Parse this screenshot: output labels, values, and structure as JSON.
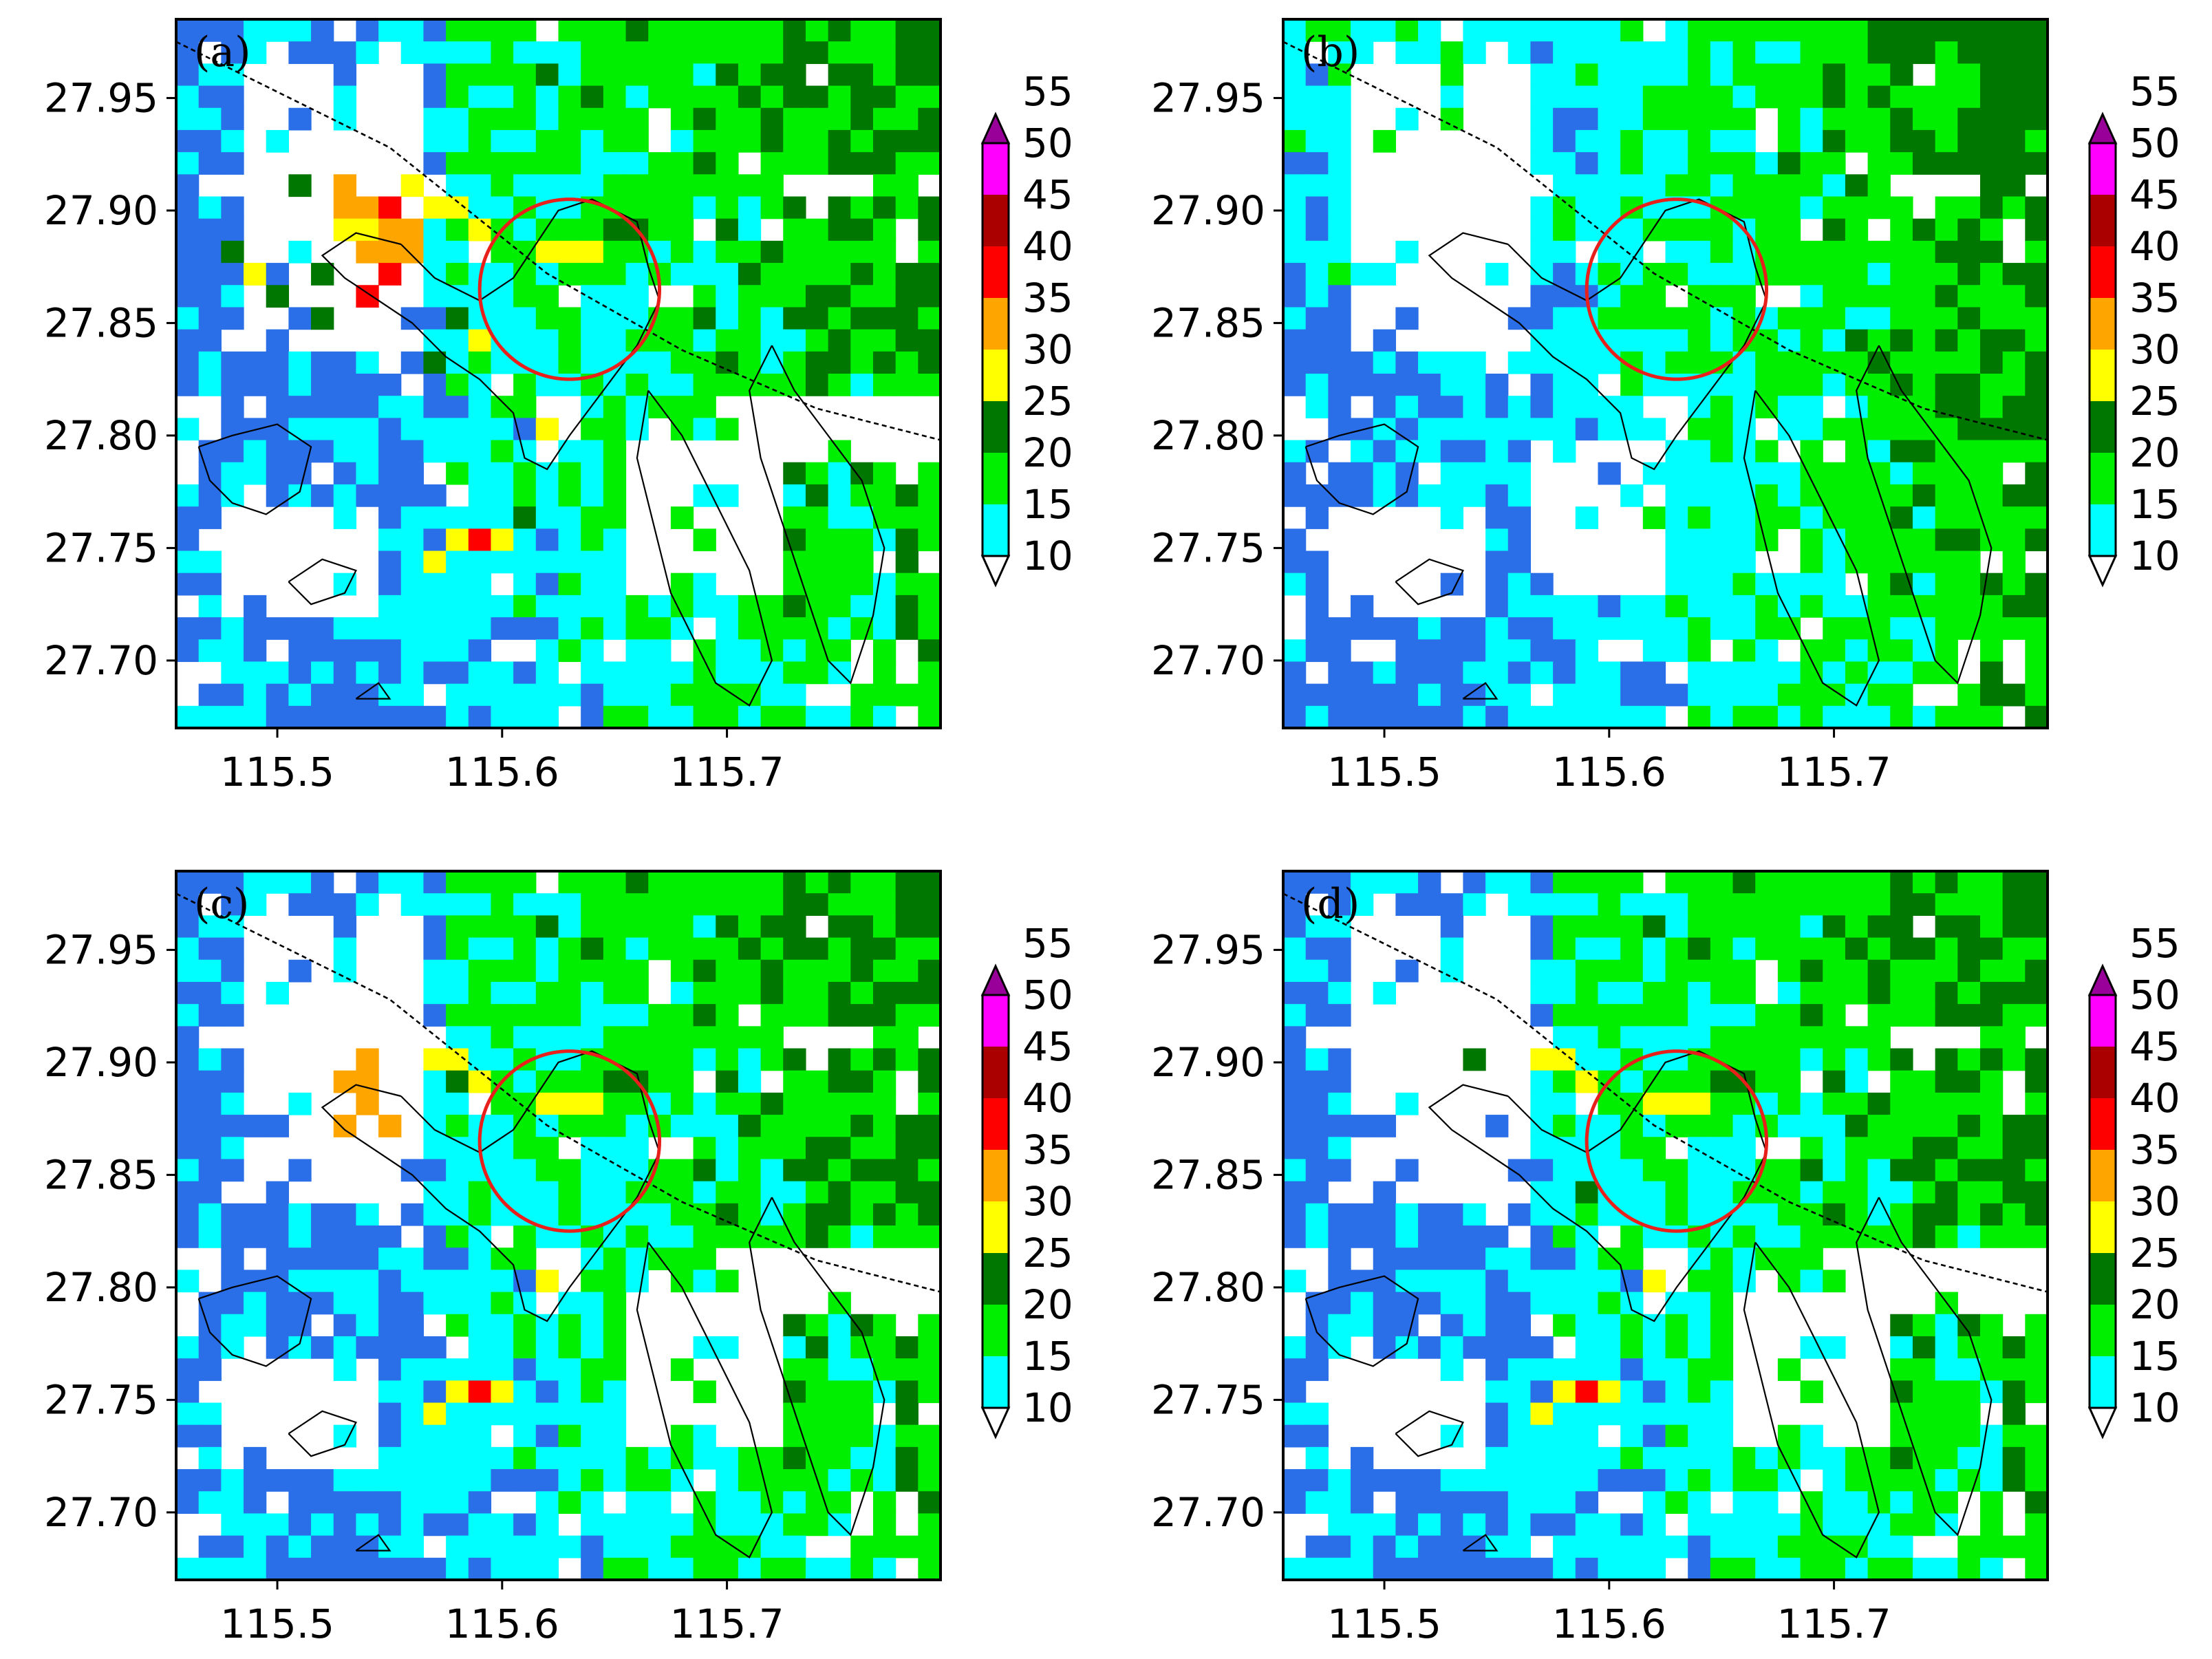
{
  "chart_data": {
    "type": "heatmap",
    "x_ticks": [
      "115.5",
      "115.6",
      "115.7"
    ],
    "y_ticks": [
      "27.70",
      "27.75",
      "27.80",
      "27.85",
      "27.90",
      "27.95"
    ],
    "xlim": [
      115.455,
      115.795
    ],
    "ylim": [
      27.67,
      27.985
    ],
    "colorbar": {
      "levels": [
        "10",
        "15",
        "20",
        "25",
        "30",
        "35",
        "40",
        "45",
        "50",
        "55"
      ],
      "colors": [
        "#2b6fe8",
        "#00ffff",
        "#00ee00",
        "#007700",
        "#ffff00",
        "#ffa500",
        "#ff0000",
        "#aa0000",
        "#ff00ff",
        "#990099"
      ],
      "extend": "both"
    },
    "circle": {
      "lon": 115.63,
      "lat": 27.865,
      "radius_deg": 0.04,
      "color": "#e8201c"
    },
    "track_line": [
      [
        115.455,
        27.975
      ],
      [
        115.55,
        27.928
      ],
      [
        115.62,
        27.872
      ],
      [
        115.68,
        27.838
      ],
      [
        115.74,
        27.812
      ],
      [
        115.795,
        27.798
      ]
    ],
    "panels": [
      {
        "label": "(a)",
        "hot": [
          [
            7,
            23,
            5
          ],
          [
            8,
            23,
            5
          ],
          [
            9,
            23,
            6
          ],
          [
            9,
            22,
            5
          ],
          [
            8,
            22,
            4
          ],
          [
            7,
            22,
            4
          ],
          [
            8,
            21,
            5
          ],
          [
            9,
            21,
            5
          ],
          [
            10,
            22,
            5
          ],
          [
            10,
            21,
            5
          ],
          [
            9,
            20,
            6
          ],
          [
            8,
            19,
            6
          ],
          [
            6,
            20,
            3
          ],
          [
            10,
            24,
            4
          ],
          [
            7,
            24,
            5
          ],
          [
            5,
            24,
            3
          ],
          [
            3,
            20,
            4
          ],
          [
            4,
            19,
            3
          ],
          [
            2,
            21,
            3
          ],
          [
            13,
            17,
            4
          ],
          [
            12,
            18,
            3
          ],
          [
            13,
            22,
            4
          ],
          [
            6,
            18,
            3
          ],
          [
            11,
            16,
            3
          ],
          [
            14,
            8,
            4
          ],
          [
            13,
            8,
            6
          ],
          [
            12,
            8,
            4
          ],
          [
            11,
            7,
            4
          ],
          [
            15,
            9,
            3
          ],
          [
            16,
            13,
            4
          ],
          [
            16,
            21,
            4
          ],
          [
            17,
            21,
            4
          ],
          [
            18,
            21,
            4
          ],
          [
            19,
            22,
            3
          ],
          [
            20,
            22,
            3
          ],
          [
            12,
            23,
            4
          ],
          [
            11,
            23,
            4
          ]
        ]
      },
      {
        "label": "(b)",
        "hot": []
      },
      {
        "label": "(c)",
        "hot": [
          [
            7,
            22,
            5
          ],
          [
            8,
            22,
            5
          ],
          [
            8,
            23,
            5
          ],
          [
            9,
            20,
            5
          ],
          [
            7,
            20,
            5
          ],
          [
            8,
            21,
            5
          ],
          [
            12,
            22,
            3
          ],
          [
            13,
            22,
            4
          ],
          [
            13,
            8,
            6
          ],
          [
            14,
            8,
            4
          ],
          [
            11,
            7,
            4
          ],
          [
            12,
            8,
            4
          ],
          [
            16,
            13,
            4
          ],
          [
            16,
            21,
            4
          ],
          [
            17,
            21,
            4
          ],
          [
            18,
            21,
            4
          ],
          [
            19,
            22,
            3
          ],
          [
            20,
            22,
            3
          ],
          [
            12,
            23,
            4
          ],
          [
            11,
            23,
            4
          ]
        ]
      },
      {
        "label": "(d)",
        "hot": [
          [
            8,
            23,
            3
          ],
          [
            13,
            17,
            3
          ],
          [
            13,
            22,
            4
          ],
          [
            11,
            7,
            4
          ],
          [
            12,
            8,
            4
          ],
          [
            13,
            8,
            6
          ],
          [
            14,
            8,
            4
          ],
          [
            16,
            13,
            4
          ],
          [
            16,
            21,
            4
          ],
          [
            17,
            21,
            4
          ],
          [
            18,
            21,
            4
          ],
          [
            19,
            22,
            3
          ],
          [
            20,
            22,
            3
          ],
          [
            12,
            23,
            4
          ],
          [
            11,
            23,
            4
          ]
        ]
      }
    ]
  }
}
